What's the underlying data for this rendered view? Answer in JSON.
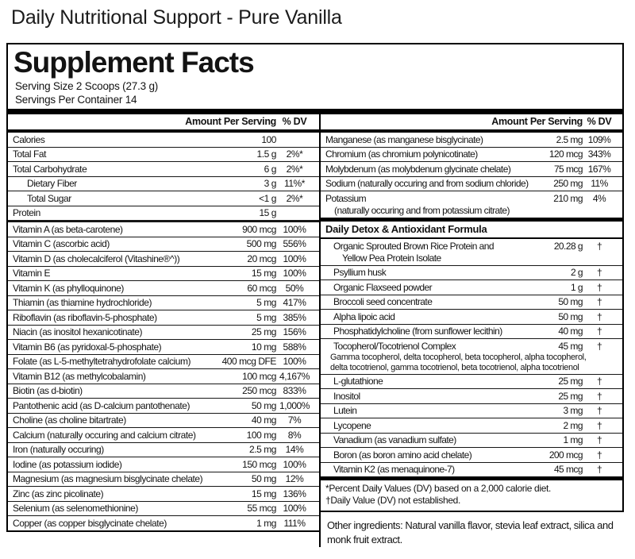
{
  "page_title": "Daily Nutritional Support - Pure Vanilla",
  "colors": {
    "ink": "#131313",
    "rule": "#000000",
    "background": "#ffffff"
  },
  "panel": {
    "title": "Supplement Facts",
    "serving_size": "Serving Size 2 Scoops (27.3 g)",
    "servings_per_container": "Servings Per Container 14",
    "col_header": {
      "amount": "Amount Per Serving",
      "dv": "% DV"
    },
    "left_rows": [
      {
        "name": "Calories",
        "amount": "100",
        "dv": ""
      },
      {
        "name": "Total Fat",
        "amount": "1.5 g",
        "dv": "2%*"
      },
      {
        "name": "Total Carbohydrate",
        "amount": "6 g",
        "dv": "2%*"
      },
      {
        "name": "Dietary Fiber",
        "amount": "3 g",
        "dv": "11%*",
        "indent": true
      },
      {
        "name": "Total Sugar",
        "amount": "<1 g",
        "dv": "2%*",
        "indent": true
      },
      {
        "name": "Protein",
        "amount": "15 g",
        "dv": "",
        "thick": true
      },
      {
        "name": "Vitamin A (as beta-carotene)",
        "amount": "900 mcg",
        "dv": "100%"
      },
      {
        "name": "Vitamin C (ascorbic acid)",
        "amount": "500 mg",
        "dv": "556%"
      },
      {
        "name": "Vitamin D (as cholecalciferol (Vitashine®^))",
        "amount": "20 mcg",
        "dv": "100%"
      },
      {
        "name": "Vitamin E",
        "amount": "15 mg",
        "dv": "100%"
      },
      {
        "name": "Vitamin K (as phylloquinone)",
        "amount": "60 mcg",
        "dv": "50%"
      },
      {
        "name": "Thiamin (as thiamine hydrochloride)",
        "amount": "5 mg",
        "dv": "417%"
      },
      {
        "name": "Riboflavin (as riboflavin-5-phosphate)",
        "amount": "5 mg",
        "dv": "385%"
      },
      {
        "name": "Niacin (as inositol hexanicotinate)",
        "amount": "25 mg",
        "dv": "156%"
      },
      {
        "name": "Vitamin B6 (as pyridoxal-5-phosphate)",
        "amount": "10 mg",
        "dv": "588%"
      },
      {
        "name": "Folate (as L-5-methyltetrahydrofolate calcium)",
        "amount": "400 mcg DFE",
        "dv": "100%"
      },
      {
        "name": "Vitamin B12 (as methylcobalamin)",
        "amount": "100 mcg",
        "dv": "4,167%"
      },
      {
        "name": "Biotin (as d-biotin)",
        "amount": "250 mcg",
        "dv": "833%"
      },
      {
        "name": "Pantothenic acid (as D-calcium pantothenate)",
        "amount": "50 mg",
        "dv": "1,000%"
      },
      {
        "name": "Choline (as choline bitartrate)",
        "amount": "40 mg",
        "dv": "7%"
      },
      {
        "name": "Calcium (naturally occuring and calcium citrate)",
        "amount": "100 mg",
        "dv": "8%"
      },
      {
        "name": "Iron (naturally occuring)",
        "amount": "2.5 mg",
        "dv": "14%"
      },
      {
        "name": "Iodine (as potassium iodide)",
        "amount": "150 mcg",
        "dv": "100%"
      },
      {
        "name": "Magnesium (as magnesium bisglycinate chelate)",
        "amount": "50 mg",
        "dv": "12%"
      },
      {
        "name": "Zinc (as zinc picolinate)",
        "amount": "15 mg",
        "dv": "136%"
      },
      {
        "name": "Selenium (as selenomethionine)",
        "amount": "55 mcg",
        "dv": "100%"
      },
      {
        "name": "Copper (as copper bisglycinate chelate)",
        "amount": "1 mg",
        "dv": "111%"
      }
    ],
    "right_rows": [
      {
        "name": "Manganese (as manganese bisglycinate)",
        "amount": "2.5 mg",
        "dv": "109%"
      },
      {
        "name": "Chromium (as chromium polynicotinate)",
        "amount": "120 mcg",
        "dv": "343%"
      },
      {
        "name": "Molybdenum (as molybdenum glycinate chelate)",
        "amount": "75 mcg",
        "dv": "167%"
      },
      {
        "name": "Sodium (naturally occuring and from sodium chloride)",
        "amount": "250 mg",
        "dv": "11%"
      },
      {
        "name": "Potassium",
        "name2": "(naturally occuring and from potassium citrate)",
        "amount": "210 mg",
        "dv": "4%"
      }
    ],
    "section": {
      "title": "Daily Detox & Antioxidant Formula",
      "rows": [
        {
          "name": "Organic Sprouted Brown Rice Protein and",
          "name2": "Yellow Pea Protein Isolate",
          "amount": "20.28 g",
          "dv": "†"
        },
        {
          "name": "Psyllium husk",
          "amount": "2 g",
          "dv": "†"
        },
        {
          "name": "Organic Flaxseed powder",
          "amount": "1 g",
          "dv": "†"
        },
        {
          "name": "Broccoli seed concentrate",
          "amount": "50 mg",
          "dv": "†"
        },
        {
          "name": "Alpha lipoic acid",
          "amount": "50 mg",
          "dv": "†"
        },
        {
          "name": "Phosphatidylcholine (from sunflower lecithin)",
          "amount": "40 mg",
          "dv": "†"
        },
        {
          "name": "Tocopherol/Tocotrienol Complex",
          "amount": "45 mg",
          "dv": "†",
          "sub": [
            "Gamma tocopherol, delta tocopherol, beta tocopherol, alpha tocopherol,",
            "delta tocotrienol, gamma tocotrienol, beta tocotrienol, alpha tocotrienol"
          ]
        },
        {
          "name": "L-glutathione",
          "amount": "25 mg",
          "dv": "†"
        },
        {
          "name": "Inositol",
          "amount": "25 mg",
          "dv": "†"
        },
        {
          "name": "Lutein",
          "amount": "3 mg",
          "dv": "†"
        },
        {
          "name": "Lycopene",
          "amount": "2 mg",
          "dv": "†"
        },
        {
          "name": "Vanadium (as vanadium sulfate)",
          "amount": "1 mg",
          "dv": "†"
        },
        {
          "name": "Boron (as boron amino acid chelate)",
          "amount": "200 mcg",
          "dv": "†"
        },
        {
          "name": "Vitamin K2 (as menaquinone-7)",
          "amount": "45 mcg",
          "dv": "†"
        }
      ]
    },
    "footnotes": [
      "*Percent Daily Values (DV) based on a 2,000 calorie diet.",
      "†Daily Value (DV) not established."
    ],
    "other_ingredients": "Other ingredients: Natural vanilla flavor, stevia leaf extract, silica and monk fruit extract."
  }
}
